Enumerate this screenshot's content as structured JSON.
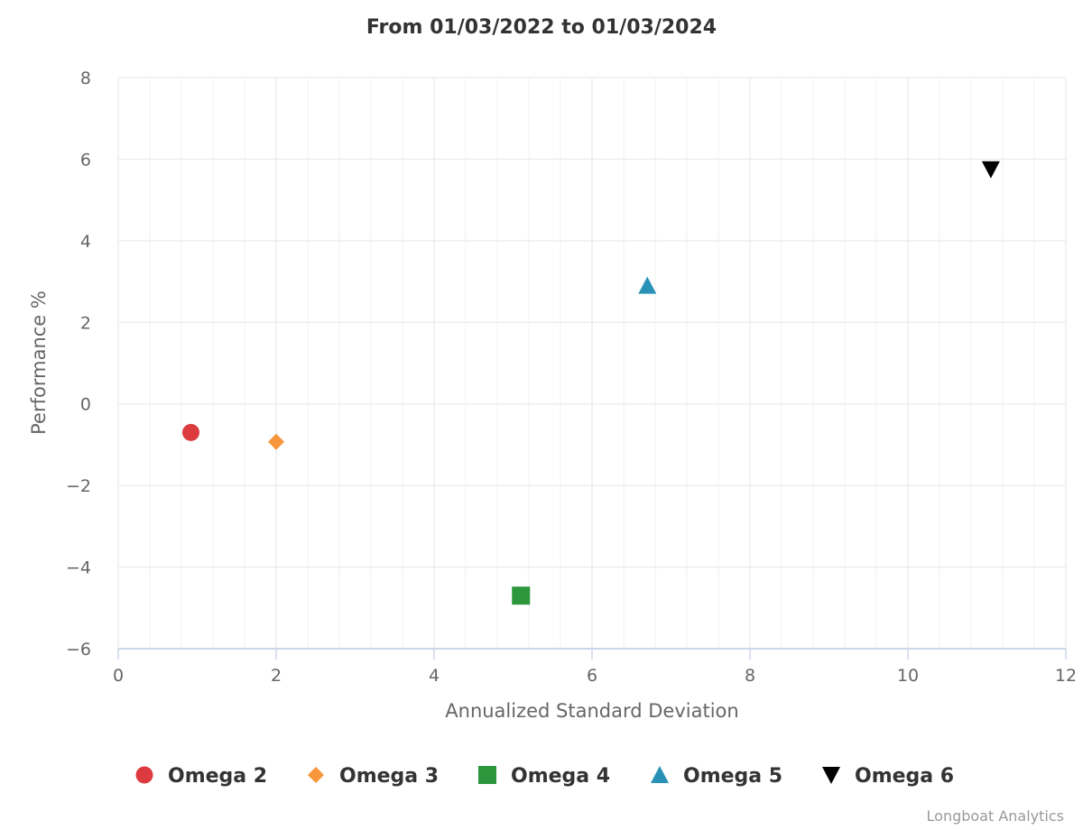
{
  "chart_data": {
    "type": "scatter",
    "title": "From 01/03/2022 to 01/03/2024",
    "xlabel": "Annualized Standard Deviation",
    "ylabel": "Performance %",
    "xlim": [
      0,
      12
    ],
    "ylim": [
      -6,
      8
    ],
    "x_major_ticks": [
      0,
      2,
      4,
      6,
      8,
      10,
      12
    ],
    "x_minor_step": 0.4,
    "y_major_ticks": [
      -6,
      -4,
      -2,
      0,
      2,
      4,
      6,
      8
    ],
    "x_tick_labels": [
      "0",
      "2",
      "4",
      "6",
      "8",
      "10",
      "12"
    ],
    "y_tick_labels": [
      "−6",
      "−4",
      "−2",
      "0",
      "2",
      "4",
      "6",
      "8"
    ],
    "grid": true,
    "legend_position": "bottom-center",
    "series": [
      {
        "name": "Omega 2",
        "marker": "circle",
        "color": "#dc3a3f",
        "x": 0.92,
        "y": -0.7
      },
      {
        "name": "Omega 3",
        "marker": "diamond",
        "color": "#f7963b",
        "x": 2.0,
        "y": -0.93
      },
      {
        "name": "Omega 4",
        "marker": "square",
        "color": "#2b963c",
        "x": 5.1,
        "y": -4.7
      },
      {
        "name": "Omega 5",
        "marker": "triangle",
        "color": "#2891b5",
        "x": 6.7,
        "y": 2.9
      },
      {
        "name": "Omega 6",
        "marker": "triangle-down",
        "color": "#000000",
        "x": 11.05,
        "y": 5.75
      }
    ],
    "credit": "Longboat Analytics"
  }
}
